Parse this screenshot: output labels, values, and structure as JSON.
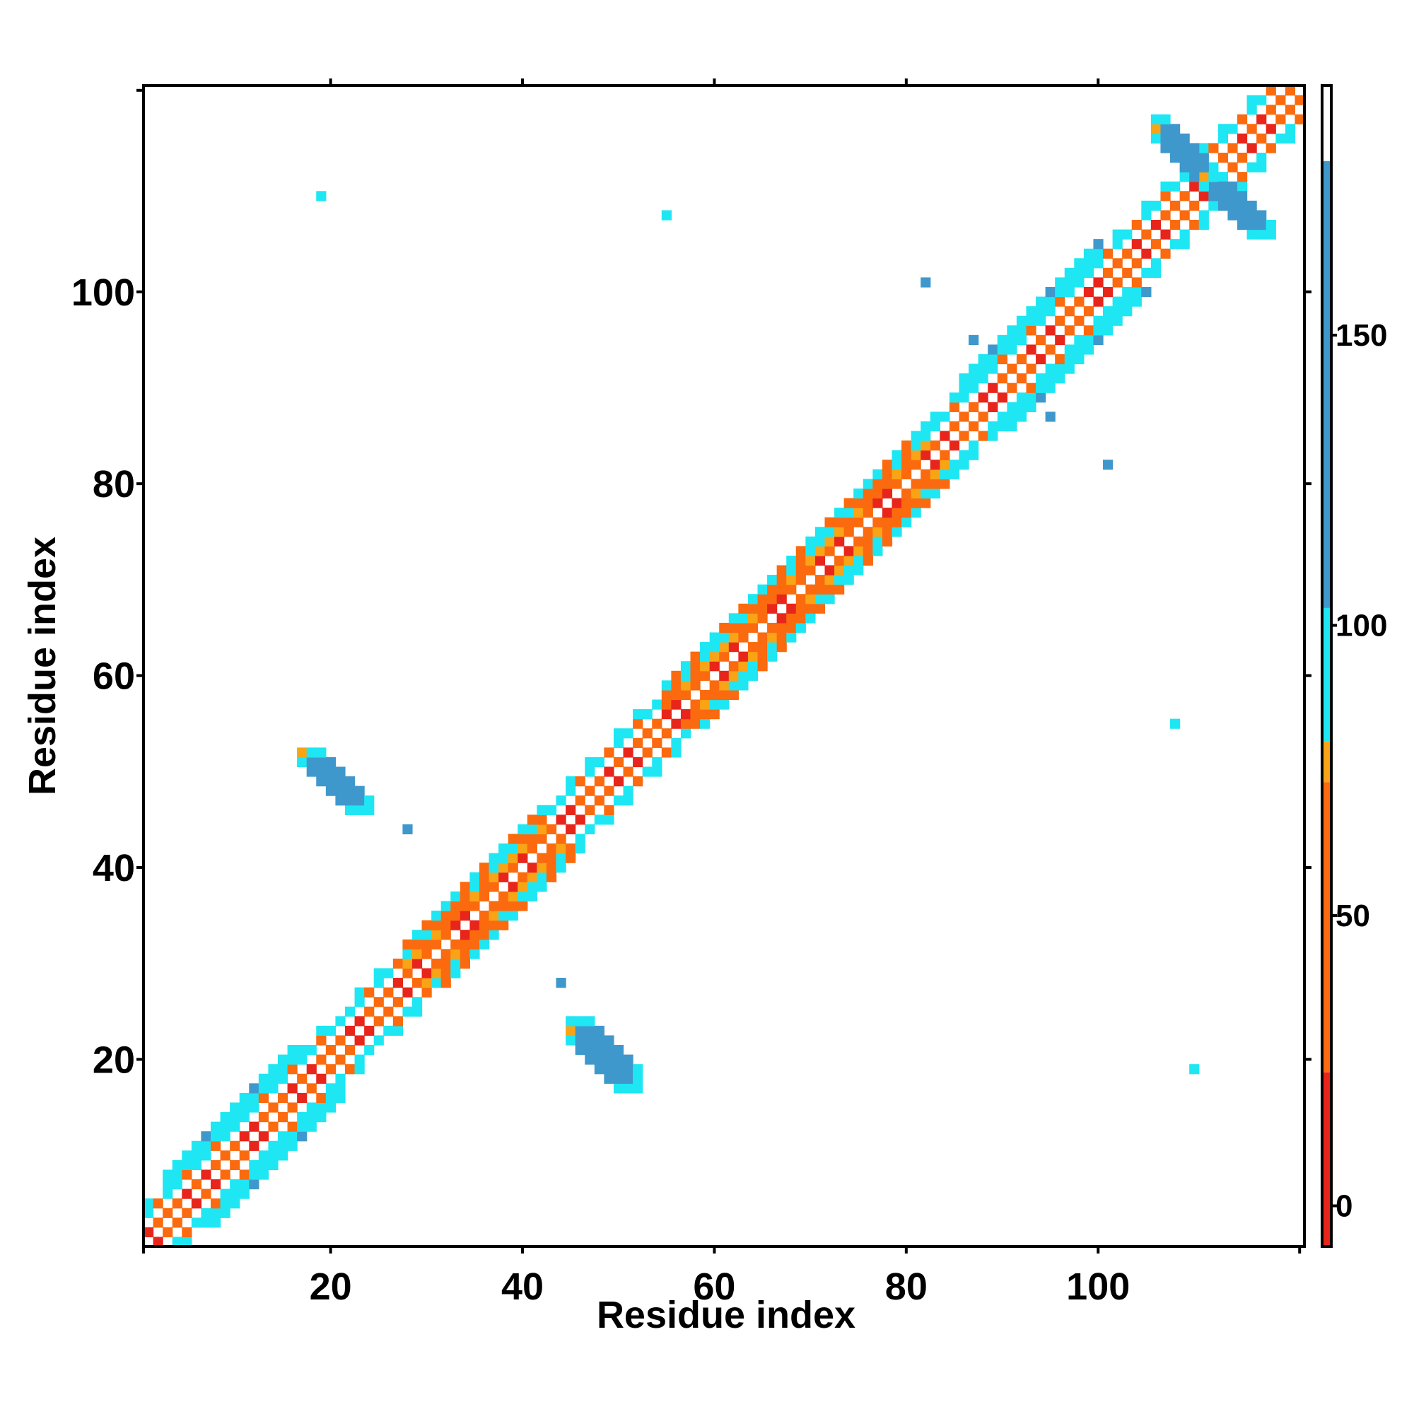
{
  "chart_data": {
    "type": "heatmap",
    "title": "",
    "xlabel": "Residue index",
    "ylabel": "Residue index",
    "xlim": [
      0.5,
      121.5
    ],
    "ylim": [
      0.5,
      121.5
    ],
    "x_ticks": [
      20,
      40,
      60,
      80,
      100
    ],
    "y_ticks": [
      20,
      40,
      60,
      80,
      100
    ],
    "grid": false,
    "legend": "none",
    "colorbar": {
      "position": "right",
      "ticks": [
        0,
        50,
        100,
        150
      ],
      "range": [
        -7,
        193
      ],
      "bands": [
        {
          "from": -7,
          "to": 23,
          "color": "#E8251A"
        },
        {
          "from": 23,
          "to": 73,
          "color": "#FB6A0E"
        },
        {
          "from": 73,
          "to": 80,
          "color": "#F9A416"
        },
        {
          "from": 80,
          "to": 103,
          "color": "#1EE7F3"
        },
        {
          "from": 103,
          "to": 180,
          "color": "#3F98CC"
        },
        {
          "from": 180,
          "to": 193,
          "color": "#FFFFFF"
        }
      ]
    },
    "colors": {
      "red": "#E8251A",
      "orange": "#FB6A0E",
      "amber": "#F9A416",
      "cyan": "#1EE7F3",
      "blue": "#3F98CC"
    },
    "helix_segments": [
      [
        28,
        42
      ],
      [
        55,
        82
      ]
    ],
    "strand_segments": [
      [
        2,
        27
      ],
      [
        43,
        54
      ],
      [
        83,
        121
      ]
    ],
    "wide_cyan_segments": [
      [
        3,
        16
      ],
      [
        86,
        100
      ]
    ],
    "contact_patches": [
      {
        "x": [
          17,
          24
        ],
        "y": [
          46,
          52
        ],
        "color": "blue"
      },
      {
        "x": [
          45,
          52
        ],
        "y": [
          17,
          24
        ],
        "color": "blue"
      },
      {
        "x": [
          106,
          112
        ],
        "y": [
          111,
          118
        ],
        "color": "blue"
      },
      {
        "x": [
          111,
          118
        ],
        "y": [
          106,
          112
        ],
        "color": "blue"
      }
    ],
    "isolated_points": [
      {
        "x": 19,
        "y": 110,
        "color": "cyan"
      },
      {
        "x": 55,
        "y": 108,
        "color": "cyan"
      },
      {
        "x": 82,
        "y": 101,
        "color": "blue"
      },
      {
        "x": 87,
        "y": 95,
        "color": "blue"
      },
      {
        "x": 95,
        "y": 87,
        "color": "blue"
      },
      {
        "x": 101,
        "y": 82,
        "color": "blue"
      },
      {
        "x": 108,
        "y": 55,
        "color": "cyan"
      },
      {
        "x": 110,
        "y": 19,
        "color": "cyan"
      },
      {
        "x": 28,
        "y": 44,
        "color": "blue"
      },
      {
        "x": 44,
        "y": 28,
        "color": "blue"
      }
    ]
  }
}
